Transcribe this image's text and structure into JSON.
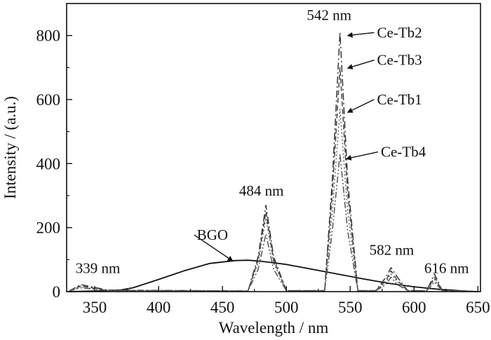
{
  "chart_data": {
    "type": "line",
    "xlabel": "Wavelength / nm",
    "ylabel": "Intensity / (a.u.)",
    "xlim": [
      328,
      652
    ],
    "ylim": [
      0,
      900
    ],
    "x_ticks": [
      350,
      400,
      450,
      500,
      550,
      600,
      650
    ],
    "y_ticks": [
      0,
      200,
      400,
      600,
      800
    ],
    "grid": false,
    "series": [
      {
        "name": "BGO",
        "style": "solid",
        "x": [
          330,
          350,
          370,
          380,
          400,
          420,
          440,
          460,
          470,
          480,
          500,
          520,
          540,
          560,
          580,
          600,
          620,
          640,
          650
        ],
        "y": [
          0,
          2,
          5,
          12,
          38,
          65,
          88,
          97,
          98,
          95,
          85,
          70,
          55,
          40,
          26,
          15,
          7,
          2,
          0
        ]
      },
      {
        "name": "Ce-Tb2",
        "style": "dashdot",
        "x": [
          330,
          339,
          360,
          470,
          478,
          484,
          490,
          500,
          530,
          536,
          542,
          548,
          556,
          570,
          578,
          582,
          587,
          595,
          610,
          616,
          622,
          640,
          650
        ],
        "y": [
          2,
          22,
          5,
          2,
          110,
          270,
          110,
          3,
          3,
          350,
          810,
          350,
          3,
          3,
          45,
          75,
          45,
          3,
          3,
          55,
          3,
          2,
          0
        ]
      },
      {
        "name": "Ce-Tb3",
        "style": "dashed",
        "x": [
          330,
          339,
          360,
          470,
          478,
          484,
          490,
          500,
          530,
          536,
          542,
          548,
          556,
          570,
          578,
          582,
          587,
          595,
          610,
          616,
          622,
          640,
          650
        ],
        "y": [
          2,
          18,
          4,
          2,
          100,
          250,
          100,
          3,
          3,
          310,
          700,
          310,
          3,
          3,
          35,
          65,
          35,
          3,
          3,
          45,
          3,
          2,
          0
        ]
      },
      {
        "name": "Ce-Tb1",
        "style": "dotted",
        "x": [
          330,
          339,
          360,
          470,
          478,
          484,
          490,
          500,
          530,
          536,
          542,
          548,
          556,
          570,
          578,
          582,
          587,
          595,
          610,
          616,
          622,
          640,
          650
        ],
        "y": [
          2,
          15,
          4,
          2,
          90,
          230,
          90,
          3,
          3,
          250,
          570,
          250,
          3,
          3,
          30,
          55,
          30,
          3,
          3,
          38,
          3,
          2,
          0
        ]
      },
      {
        "name": "Ce-Tb4",
        "style": "dashdotdot",
        "x": [
          330,
          339,
          360,
          470,
          478,
          484,
          490,
          500,
          530,
          536,
          542,
          548,
          556,
          570,
          578,
          582,
          587,
          595,
          610,
          616,
          622,
          640,
          650
        ],
        "y": [
          2,
          12,
          3,
          2,
          70,
          180,
          70,
          3,
          3,
          190,
          430,
          190,
          3,
          3,
          22,
          45,
          22,
          3,
          3,
          30,
          3,
          2,
          0
        ]
      }
    ],
    "annotations": [
      {
        "text": "542 nm",
        "x": 516,
        "y": 848
      },
      {
        "text": "484 nm",
        "x": 463,
        "y": 300
      },
      {
        "text": "582 nm",
        "x": 565,
        "y": 115
      },
      {
        "text": "616 nm",
        "x": 608,
        "y": 58
      },
      {
        "text": "339 nm",
        "x": 335,
        "y": 58
      },
      {
        "text": "BGO",
        "x": 430,
        "y": 162
      },
      {
        "text": "Ce-Tb2",
        "x": 571,
        "y": 794
      },
      {
        "text": "Ce-Tb3",
        "x": 571,
        "y": 708
      },
      {
        "text": "Ce-Tb1",
        "x": 571,
        "y": 585
      },
      {
        "text": "Ce-Tb4",
        "x": 574,
        "y": 421
      }
    ]
  }
}
